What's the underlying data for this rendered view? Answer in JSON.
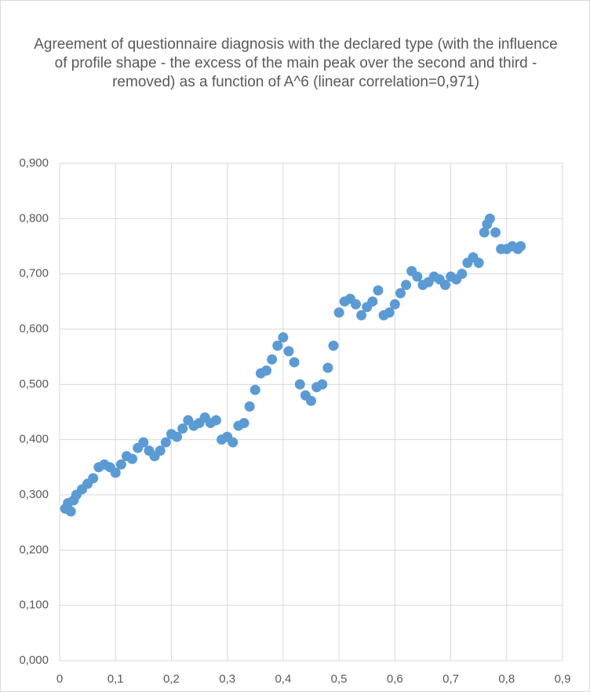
{
  "chart_data": {
    "type": "scatter",
    "title": "Agreement of questionnaire diagnosis with the declared type (with the influence of profile shape - the excess of the main peak over the second and third - removed) as a function of A^6 (linear correlation=0,971)",
    "color": "#5b9bd5",
    "grid": true,
    "x": [
      0.01,
      0.015,
      0.02,
      0.025,
      0.03,
      0.04,
      0.05,
      0.06,
      0.07,
      0.08,
      0.09,
      0.1,
      0.11,
      0.12,
      0.13,
      0.14,
      0.15,
      0.16,
      0.17,
      0.18,
      0.19,
      0.2,
      0.21,
      0.22,
      0.23,
      0.24,
      0.25,
      0.26,
      0.27,
      0.28,
      0.29,
      0.3,
      0.31,
      0.32,
      0.33,
      0.34,
      0.35,
      0.36,
      0.37,
      0.38,
      0.39,
      0.4,
      0.41,
      0.42,
      0.43,
      0.44,
      0.45,
      0.46,
      0.47,
      0.48,
      0.49,
      0.5,
      0.51,
      0.52,
      0.53,
      0.54,
      0.55,
      0.56,
      0.57,
      0.58,
      0.59,
      0.6,
      0.61,
      0.62,
      0.63,
      0.64,
      0.65,
      0.66,
      0.67,
      0.68,
      0.69,
      0.7,
      0.71,
      0.72,
      0.73,
      0.74,
      0.75,
      0.76,
      0.765,
      0.77,
      0.78,
      0.79,
      0.8,
      0.81,
      0.82,
      0.825
    ],
    "values": [
      0.275,
      0.285,
      0.27,
      0.29,
      0.3,
      0.31,
      0.32,
      0.33,
      0.35,
      0.355,
      0.35,
      0.34,
      0.355,
      0.37,
      0.365,
      0.385,
      0.395,
      0.38,
      0.37,
      0.38,
      0.395,
      0.41,
      0.405,
      0.42,
      0.435,
      0.425,
      0.43,
      0.44,
      0.43,
      0.435,
      0.4,
      0.405,
      0.395,
      0.425,
      0.43,
      0.46,
      0.49,
      0.52,
      0.525,
      0.545,
      0.57,
      0.585,
      0.56,
      0.54,
      0.5,
      0.48,
      0.47,
      0.495,
      0.5,
      0.53,
      0.57,
      0.63,
      0.65,
      0.655,
      0.645,
      0.625,
      0.64,
      0.65,
      0.67,
      0.625,
      0.63,
      0.645,
      0.665,
      0.68,
      0.705,
      0.695,
      0.68,
      0.685,
      0.695,
      0.69,
      0.68,
      0.695,
      0.69,
      0.7,
      0.72,
      0.73,
      0.72,
      0.775,
      0.79,
      0.8,
      0.775,
      0.745,
      0.745,
      0.75,
      0.745,
      0.75
    ],
    "xlim": [
      0,
      0.9
    ],
    "xticks": [
      0,
      {
        "value": 0.1,
        "label": "0,1"
      },
      {
        "value": 0.2,
        "label": "0,2"
      },
      {
        "value": 0.3,
        "label": "0,3"
      },
      {
        "value": 0.4,
        "label": "0,4"
      },
      {
        "value": 0.5,
        "label": "0,5"
      },
      {
        "value": 0.6,
        "label": "0,6"
      },
      {
        "value": 0.7,
        "label": "0,7"
      },
      {
        "value": 0.8,
        "label": "0,8"
      },
      {
        "value": 0.9,
        "label": "0,9"
      }
    ],
    "ylim": [
      0,
      0.9
    ],
    "yticks": [
      {
        "value": 0,
        "label": "0,000"
      },
      {
        "value": 0.1,
        "label": "0,100"
      },
      {
        "value": 0.2,
        "label": "0,200"
      },
      {
        "value": 0.3,
        "label": "0,300"
      },
      {
        "value": 0.4,
        "label": "0,400"
      },
      {
        "value": 0.5,
        "label": "0,500"
      },
      {
        "value": 0.6,
        "label": "0,600"
      },
      {
        "value": 0.7,
        "label": "0,700"
      },
      {
        "value": 0.8,
        "label": "0,800"
      },
      {
        "value": 0.9,
        "label": "0,900"
      }
    ]
  }
}
